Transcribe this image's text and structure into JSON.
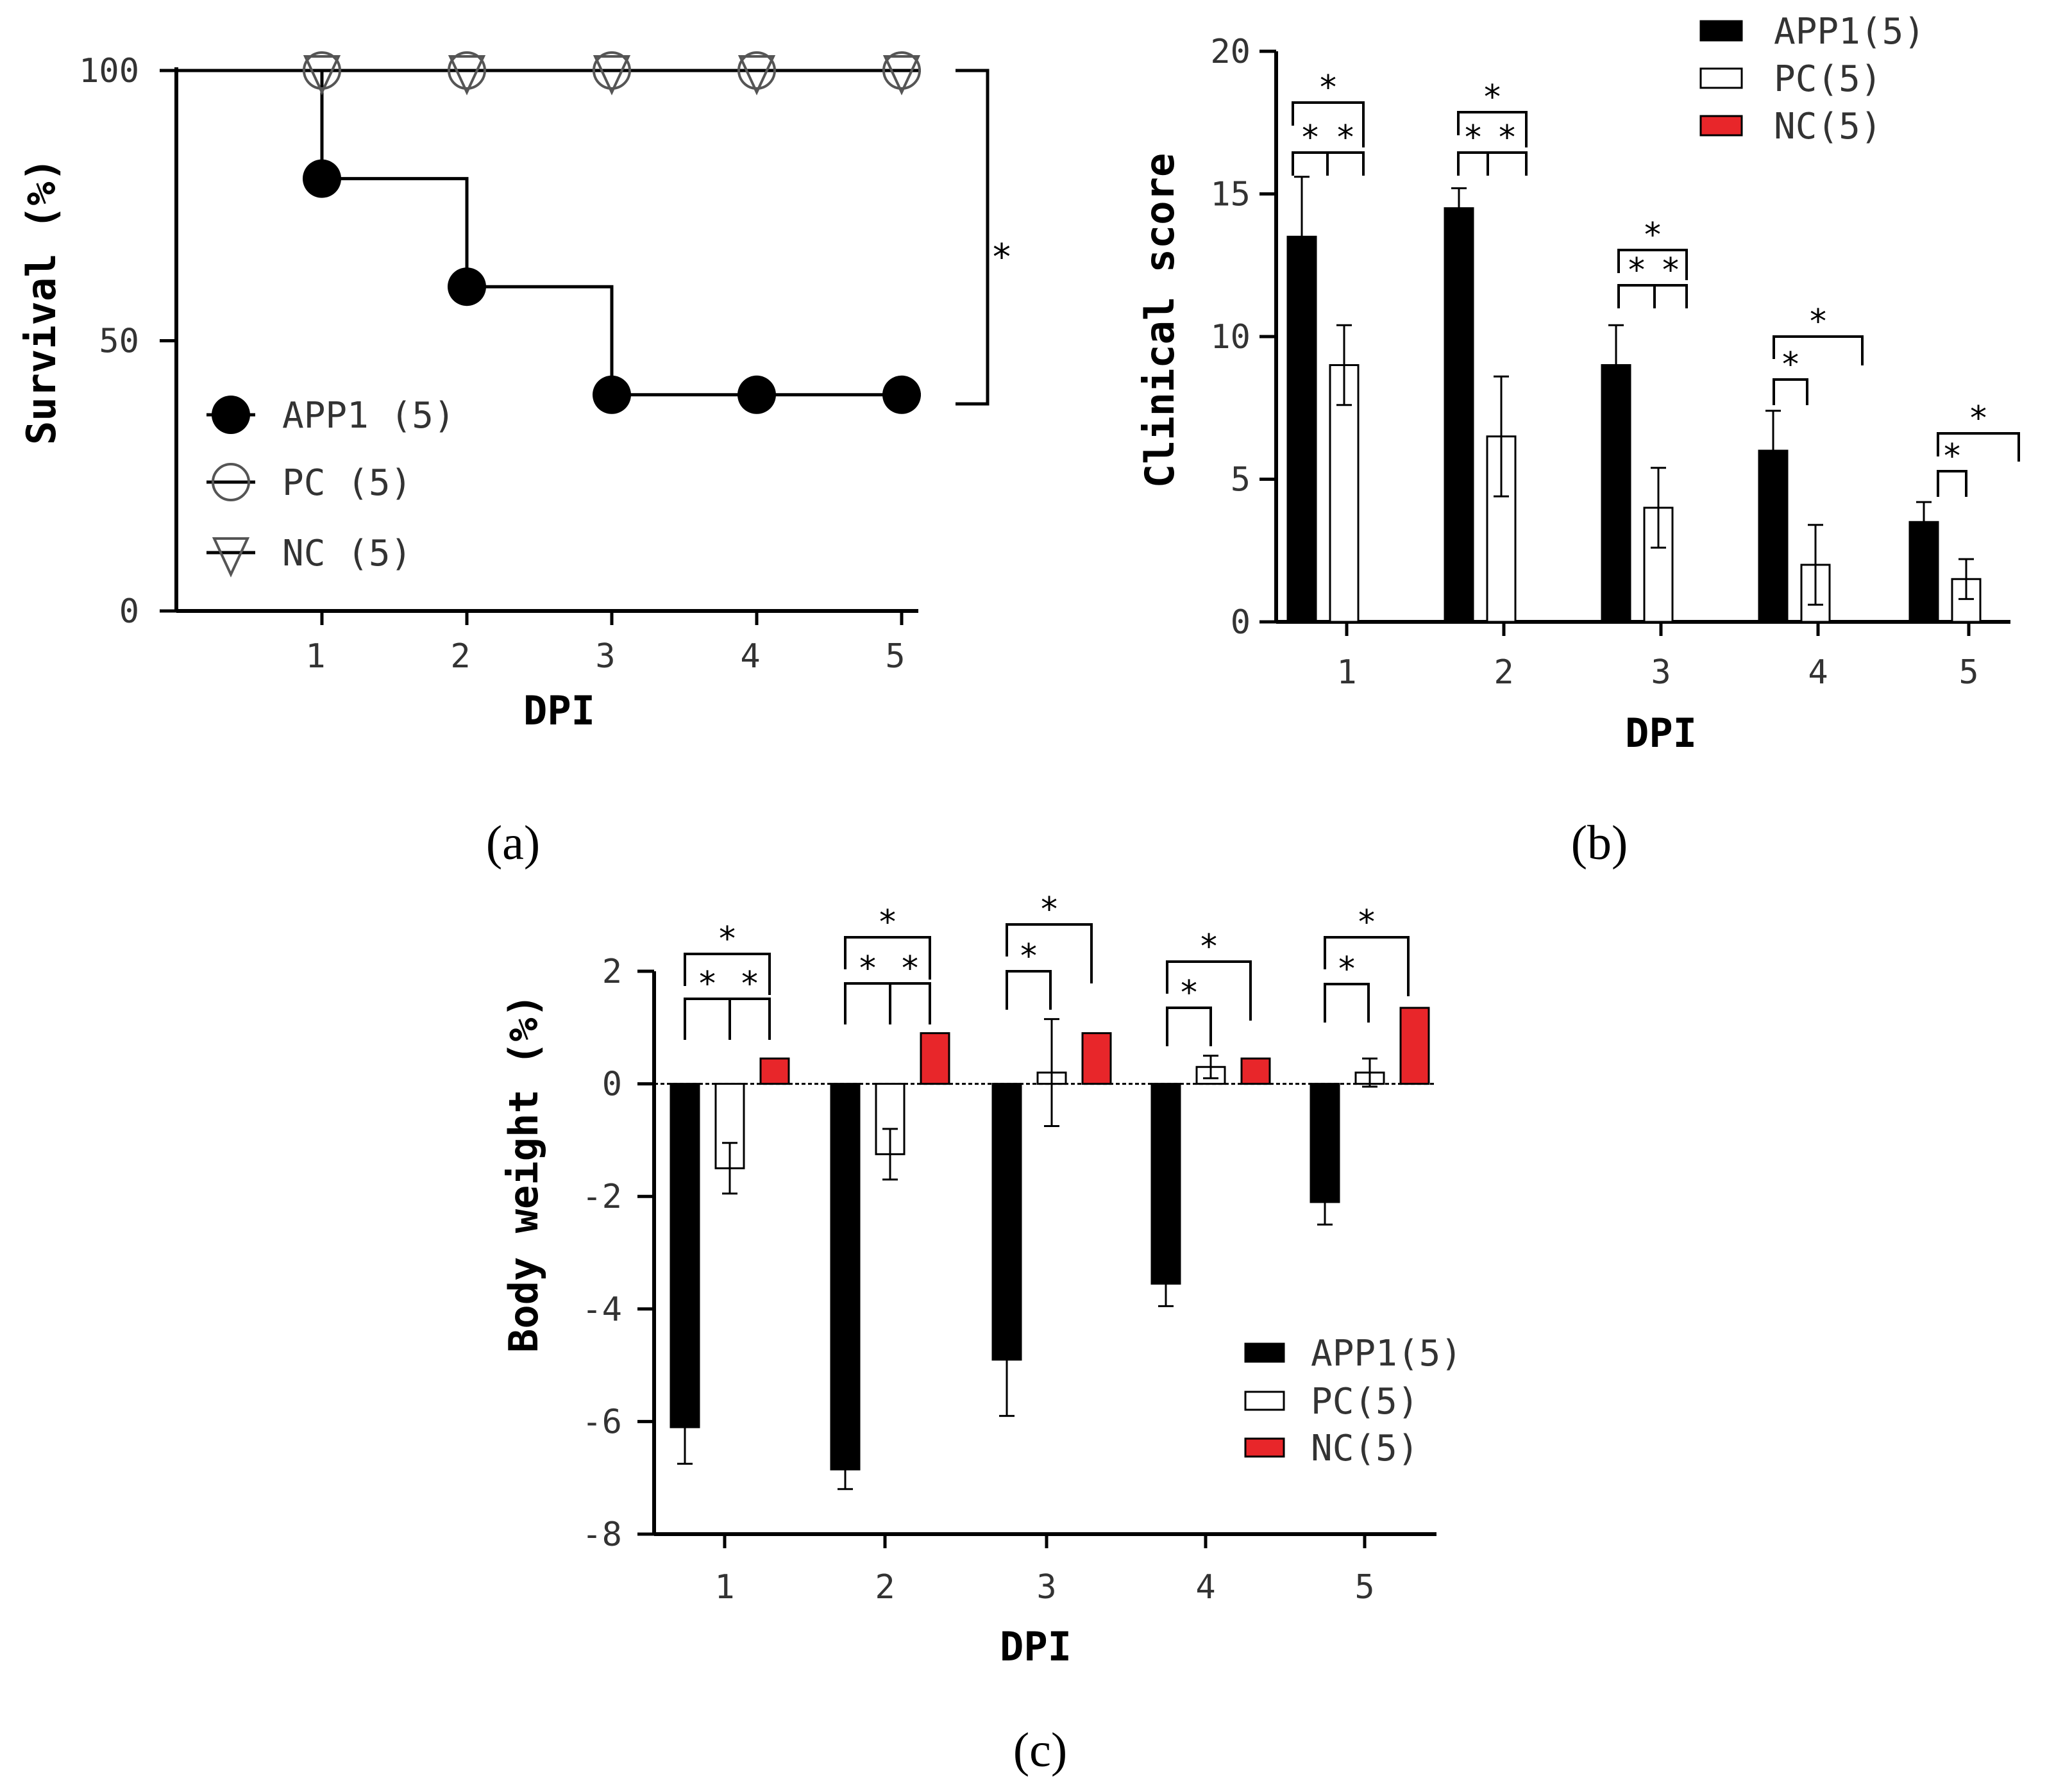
{
  "chart_data": [
    {
      "type": "line",
      "panel_label": "(a)",
      "xlabel": "DPI",
      "ylabel": "Survival (%)",
      "x": [
        1,
        2,
        3,
        4,
        5
      ],
      "xlim": [
        0,
        5
      ],
      "ylim": [
        0,
        100
      ],
      "x_ticks": [
        "1",
        "2",
        "3",
        "4",
        "5"
      ],
      "y_ticks": [
        "0",
        "50",
        "100"
      ],
      "series": [
        {
          "name": "APP1 (5)",
          "marker": "filled-circle",
          "values": [
            80,
            60,
            40,
            40,
            40
          ]
        },
        {
          "name": "PC (5)",
          "marker": "open-circle",
          "values": [
            100,
            100,
            100,
            100,
            100
          ]
        },
        {
          "name": "NC (5)",
          "marker": "open-triangle",
          "values": [
            100,
            100,
            100,
            100,
            100
          ]
        }
      ],
      "significance": "*",
      "legend_position": "bottom-left"
    },
    {
      "type": "bar",
      "panel_label": "(b)",
      "xlabel": "DPI",
      "ylabel": "Clinical score",
      "categories": [
        "1",
        "2",
        "3",
        "4",
        "5"
      ],
      "ylim": [
        0,
        20
      ],
      "y_ticks": [
        "0",
        "5",
        "10",
        "15",
        "20"
      ],
      "series": [
        {
          "name": "APP1(5)",
          "color": "#000000",
          "values": [
            13.5,
            14.5,
            9.0,
            6.0,
            3.5
          ],
          "errors": [
            2.1,
            0.7,
            1.4,
            1.4,
            0.7
          ]
        },
        {
          "name": "PC(5)",
          "color": "#ffffff",
          "values": [
            9.0,
            6.5,
            4.0,
            2.0,
            1.5
          ],
          "errors": [
            1.4,
            2.1,
            1.4,
            1.4,
            0.7
          ]
        },
        {
          "name": "NC(5)",
          "color": "#e8262a",
          "values": [
            0,
            0,
            0,
            0,
            0
          ],
          "errors": [
            0,
            0,
            0,
            0,
            0
          ]
        }
      ],
      "significance_marker": "*",
      "legend_position": "top-right"
    },
    {
      "type": "bar",
      "panel_label": "(c)",
      "xlabel": "DPI",
      "ylabel": "Body weight (%)",
      "categories": [
        "1",
        "2",
        "3",
        "4",
        "5"
      ],
      "ylim": [
        -8,
        2
      ],
      "y_ticks": [
        "-8",
        "-6",
        "-4",
        "-2",
        "0",
        "2"
      ],
      "series": [
        {
          "name": "APP1(5)",
          "color": "#000000",
          "values": [
            -6.1,
            -6.85,
            -4.9,
            -3.55,
            -2.1
          ],
          "errors": [
            0.65,
            0.35,
            1.0,
            0.4,
            0.4
          ]
        },
        {
          "name": "PC(5)",
          "color": "#ffffff",
          "values": [
            -1.5,
            -1.25,
            0.2,
            0.3,
            0.2
          ],
          "errors": [
            0.45,
            0.45,
            0.95,
            0.2,
            0.25
          ]
        },
        {
          "name": "NC(5)",
          "color": "#e8262a",
          "values": [
            0.45,
            0.9,
            0.9,
            0.45,
            1.35
          ],
          "errors": [
            0,
            0,
            0,
            0,
            0
          ]
        }
      ],
      "significance_marker": "*",
      "legend_position": "bottom-right"
    }
  ]
}
